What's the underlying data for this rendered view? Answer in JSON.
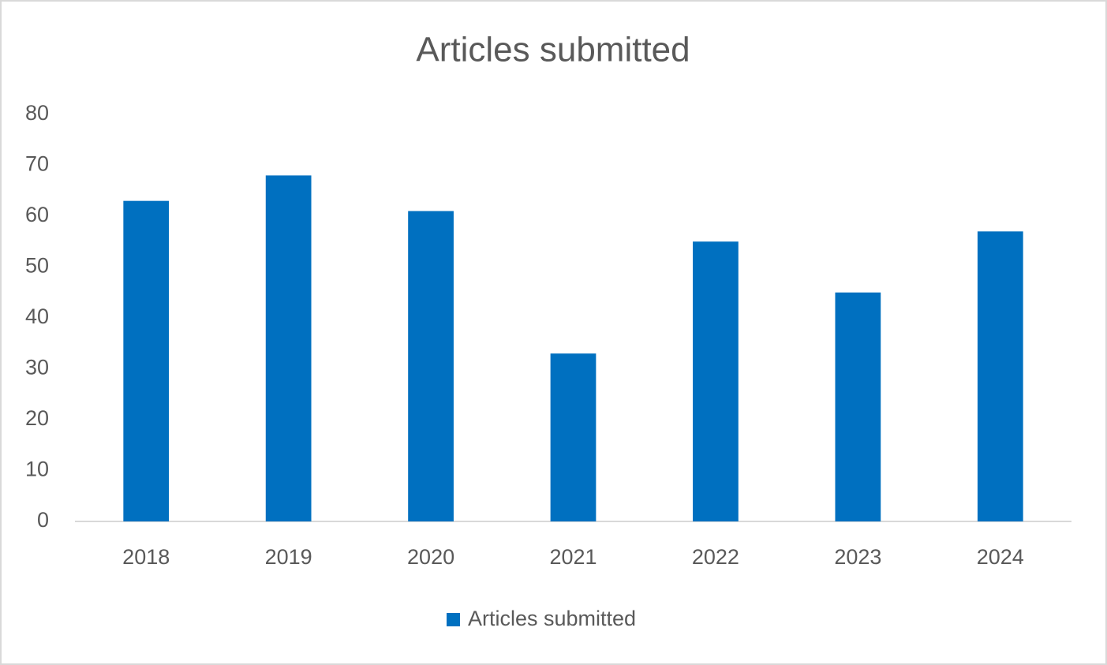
{
  "chart_data": {
    "type": "bar",
    "title": "Articles submitted",
    "categories": [
      "2018",
      "2019",
      "2020",
      "2021",
      "2022",
      "2023",
      "2024"
    ],
    "series": [
      {
        "name": "Articles submitted",
        "color": "#0070c0",
        "values": [
          63,
          68,
          61,
          33,
          55,
          45,
          57
        ]
      }
    ],
    "ylim": [
      0,
      80
    ],
    "yticks": [
      0,
      10,
      20,
      30,
      40,
      50,
      60,
      70,
      80
    ],
    "grid": false,
    "legend": "bottom"
  }
}
